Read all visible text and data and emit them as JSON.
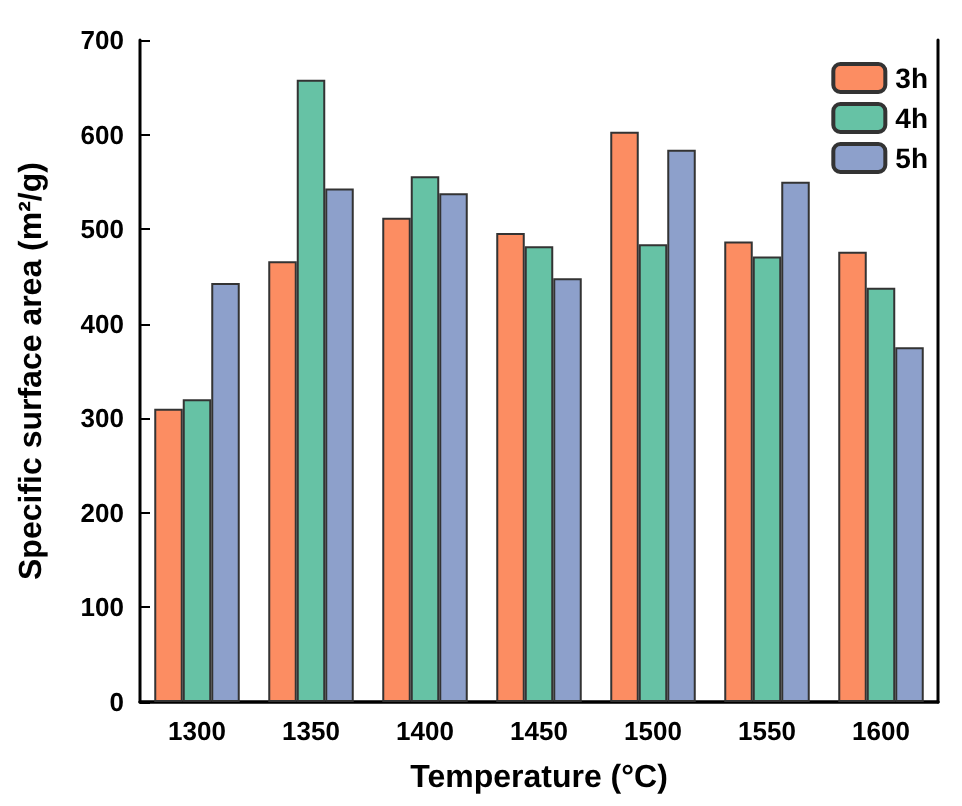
{
  "chart_data": {
    "type": "bar",
    "xlabel": "Temperature (°C)",
    "ylabel": "Specific surface area (m²/g)",
    "categories": [
      "1300",
      "1350",
      "1400",
      "1450",
      "1500",
      "1550",
      "1600"
    ],
    "series": [
      {
        "name": "3h",
        "color": "#fc8d62",
        "values": [
          310,
          466,
          512,
          496,
          603,
          487,
          476
        ]
      },
      {
        "name": "4h",
        "color": "#66c2a5",
        "values": [
          320,
          658,
          556,
          482,
          484,
          471,
          438
        ]
      },
      {
        "name": "5h",
        "color": "#8da0cb",
        "values": [
          443,
          543,
          538,
          448,
          584,
          550,
          375
        ]
      }
    ],
    "ylim": [
      0,
      700
    ],
    "yticks": [
      0,
      100,
      200,
      300,
      400,
      500,
      600,
      700
    ],
    "grid": false,
    "legend": "top right"
  }
}
